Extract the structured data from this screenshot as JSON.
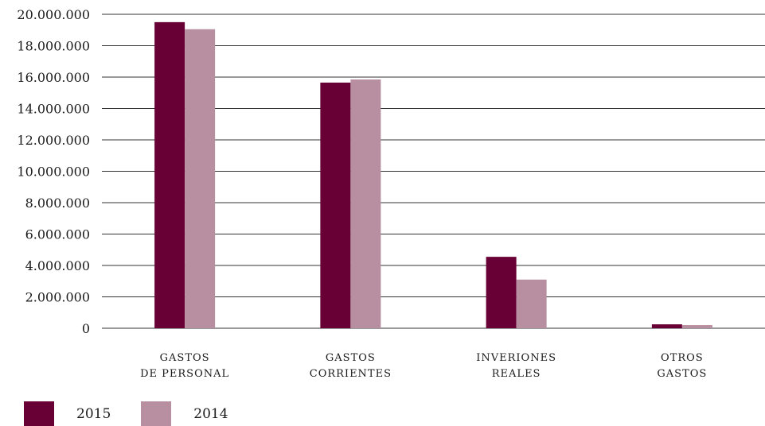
{
  "chart_data": {
    "type": "bar",
    "categories": [
      [
        "GASTOS",
        "DE PERSONAL"
      ],
      [
        "GASTOS",
        "CORRIENTES"
      ],
      [
        "INVERIONES",
        "REALES"
      ],
      [
        "OTROS",
        "GASTOS"
      ]
    ],
    "series": [
      {
        "name": "2015",
        "color": "#680035",
        "values": [
          19500000,
          15650000,
          4550000,
          250000
        ]
      },
      {
        "name": "2014",
        "color": "#b88fa0",
        "values": [
          19050000,
          15850000,
          3100000,
          200000
        ]
      }
    ],
    "ylim": [
      0,
      20000000
    ],
    "yticks": [
      0,
      2000000,
      4000000,
      6000000,
      8000000,
      10000000,
      12000000,
      14000000,
      16000000,
      18000000,
      20000000
    ],
    "ytick_labels": [
      "0",
      "2.000.000",
      "4.000.000",
      "6.000.000",
      "8.000.000",
      "10.000.000",
      "12.000.000",
      "14.000.000",
      "16.000.000",
      "18.000.000",
      "20.000.000"
    ],
    "grid": true,
    "legend_position": "bottom-left"
  }
}
